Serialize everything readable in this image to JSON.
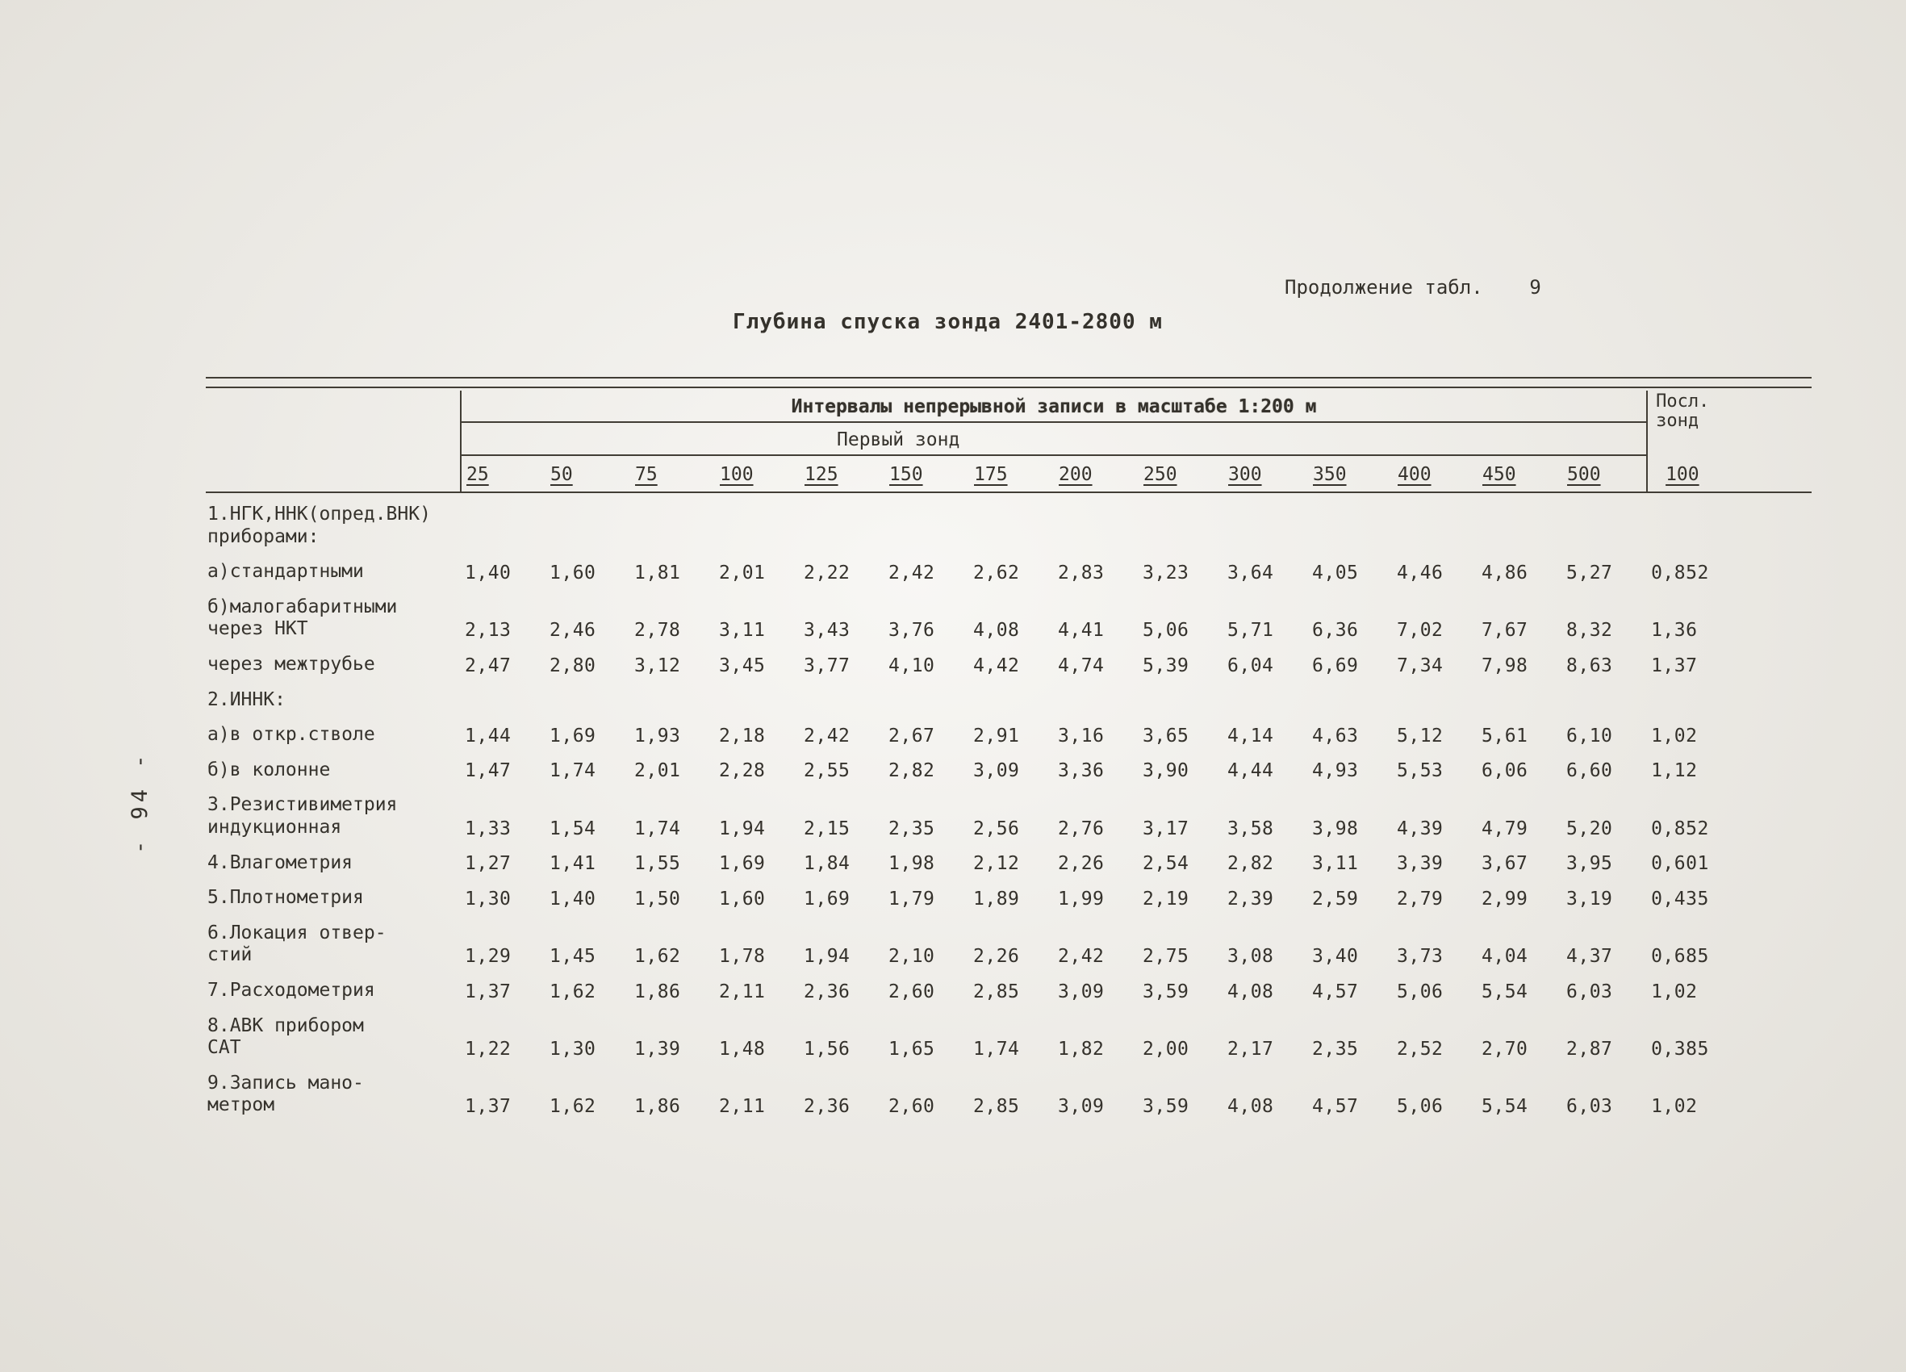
{
  "page": {
    "continuation_label": "Продолжение табл.    9",
    "title": "Глубина спуска зонда 2401-2800 м",
    "page_number": "- 94 -"
  },
  "table": {
    "header": {
      "span_title": "Интервалы непрерывной записи в масштабе 1:200 м",
      "first_probe_label": "Первый зонд",
      "last_probe_label": "Посл.\nзонд",
      "columns": [
        "25",
        "50",
        "75",
        "100",
        "125",
        "150",
        "175",
        "200",
        "250",
        "300",
        "350",
        "400",
        "450",
        "500"
      ],
      "last_column": "100"
    },
    "rows": [
      {
        "label": "1.НГК,ННК(опред.ВНК)\nприборами:",
        "values": []
      },
      {
        "label": "а)стандартными",
        "values": [
          "1,40",
          "1,60",
          "1,81",
          "2,01",
          "2,22",
          "2,42",
          "2,62",
          "2,83",
          "3,23",
          "3,64",
          "4,05",
          "4,46",
          "4,86",
          "5,27",
          "0,852"
        ]
      },
      {
        "label": "б)малогабаритными\nчерез НКТ",
        "values": [
          "2,13",
          "2,46",
          "2,78",
          "3,11",
          "3,43",
          "3,76",
          "4,08",
          "4,41",
          "5,06",
          "5,71",
          "6,36",
          "7,02",
          "7,67",
          "8,32",
          "1,36"
        ]
      },
      {
        "label": "через межтрубье",
        "values": [
          "2,47",
          "2,80",
          "3,12",
          "3,45",
          "3,77",
          "4,10",
          "4,42",
          "4,74",
          "5,39",
          "6,04",
          "6,69",
          "7,34",
          "7,98",
          "8,63",
          "1,37"
        ]
      },
      {
        "label": "2.ИННК:",
        "values": []
      },
      {
        "label": "а)в откр.стволе",
        "values": [
          "1,44",
          "1,69",
          "1,93",
          "2,18",
          "2,42",
          "2,67",
          "2,91",
          "3,16",
          "3,65",
          "4,14",
          "4,63",
          "5,12",
          "5,61",
          "6,10",
          "1,02"
        ]
      },
      {
        "label": "б)в колонне",
        "values": [
          "1,47",
          "1,74",
          "2,01",
          "2,28",
          "2,55",
          "2,82",
          "3,09",
          "3,36",
          "3,90",
          "4,44",
          "4,93",
          "5,53",
          "6,06",
          "6,60",
          "1,12"
        ]
      },
      {
        "label": "3.Резистивиметрия\nиндукционная",
        "values": [
          "1,33",
          "1,54",
          "1,74",
          "1,94",
          "2,15",
          "2,35",
          "2,56",
          "2,76",
          "3,17",
          "3,58",
          "3,98",
          "4,39",
          "4,79",
          "5,20",
          "0,852"
        ]
      },
      {
        "label": "4.Влагометрия",
        "values": [
          "1,27",
          "1,41",
          "1,55",
          "1,69",
          "1,84",
          "1,98",
          "2,12",
          "2,26",
          "2,54",
          "2,82",
          "3,11",
          "3,39",
          "3,67",
          "3,95",
          "0,601"
        ]
      },
      {
        "label": "5.Плотнометрия",
        "values": [
          "1,30",
          "1,40",
          "1,50",
          "1,60",
          "1,69",
          "1,79",
          "1,89",
          "1,99",
          "2,19",
          "2,39",
          "2,59",
          "2,79",
          "2,99",
          "3,19",
          "0,435"
        ]
      },
      {
        "label": "6.Локация отвер-\nстий",
        "values": [
          "1,29",
          "1,45",
          "1,62",
          "1,78",
          "1,94",
          "2,10",
          "2,26",
          "2,42",
          "2,75",
          "3,08",
          "3,40",
          "3,73",
          "4,04",
          "4,37",
          "0,685"
        ]
      },
      {
        "label": "7.Расходометрия",
        "values": [
          "1,37",
          "1,62",
          "1,86",
          "2,11",
          "2,36",
          "2,60",
          "2,85",
          "3,09",
          "3,59",
          "4,08",
          "4,57",
          "5,06",
          "5,54",
          "6,03",
          "1,02"
        ]
      },
      {
        "label": "8.АВК прибором\nСАТ",
        "values": [
          "1,22",
          "1,30",
          "1,39",
          "1,48",
          "1,56",
          "1,65",
          "1,74",
          "1,82",
          "2,00",
          "2,17",
          "2,35",
          "2,52",
          "2,70",
          "2,87",
          "0,385"
        ]
      },
      {
        "label": "9.Запись мано-\nметром",
        "values": [
          "1,37",
          "1,62",
          "1,86",
          "2,11",
          "2,36",
          "2,60",
          "2,85",
          "3,09",
          "3,59",
          "4,08",
          "4,57",
          "5,06",
          "5,54",
          "6,03",
          "1,02"
        ]
      }
    ]
  }
}
